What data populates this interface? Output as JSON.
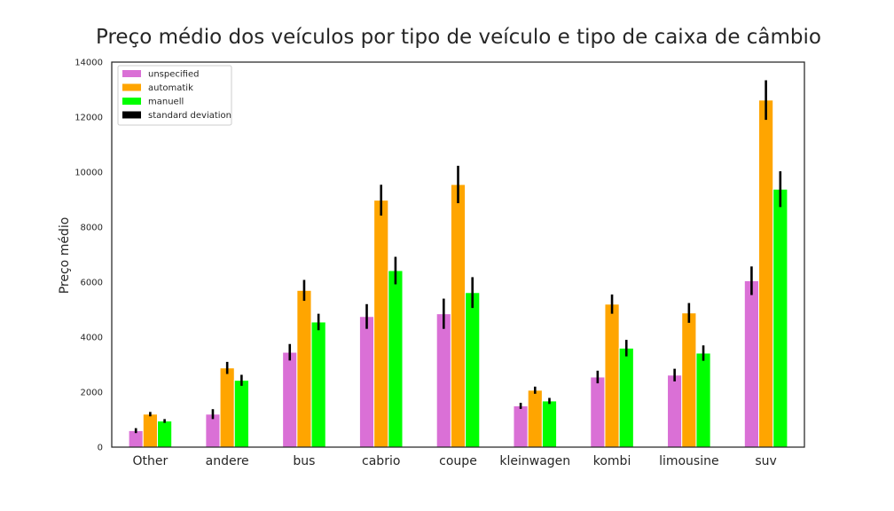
{
  "chart_data": {
    "type": "bar",
    "title": "Preço médio dos veículos por tipo de veículo e tipo de caixa de câmbio",
    "xlabel": "",
    "ylabel": "Preço médio",
    "ylim": [
      0,
      14000
    ],
    "yticks": [
      0,
      2000,
      4000,
      6000,
      8000,
      10000,
      12000,
      14000
    ],
    "grid": false,
    "legend_position": "top-left",
    "categories": [
      "Other",
      "andere",
      "bus",
      "cabrio",
      "coupe",
      "kleinwagen",
      "kombi",
      "limousine",
      "suv"
    ],
    "series": [
      {
        "name": "unspecified",
        "color": "#da70d6",
        "values": [
          600,
          1200,
          3450,
          4750,
          4850,
          1500,
          2550,
          2620,
          6050
        ],
        "std": [
          90,
          180,
          300,
          450,
          550,
          110,
          230,
          230,
          520
        ]
      },
      {
        "name": "automatik",
        "color": "#ffa500",
        "values": [
          1200,
          2880,
          5700,
          8980,
          9550,
          2070,
          5200,
          4880,
          12620
        ],
        "std": [
          80,
          220,
          380,
          560,
          680,
          130,
          350,
          360,
          720
        ]
      },
      {
        "name": "manuell",
        "color": "#00ff00",
        "values": [
          950,
          2430,
          4550,
          6420,
          5620,
          1680,
          3600,
          3420,
          9380
        ],
        "std": [
          70,
          200,
          300,
          500,
          560,
          110,
          300,
          280,
          650
        ]
      }
    ],
    "error_bar_label": "standard deviation",
    "error_bar_color": "#000000"
  }
}
